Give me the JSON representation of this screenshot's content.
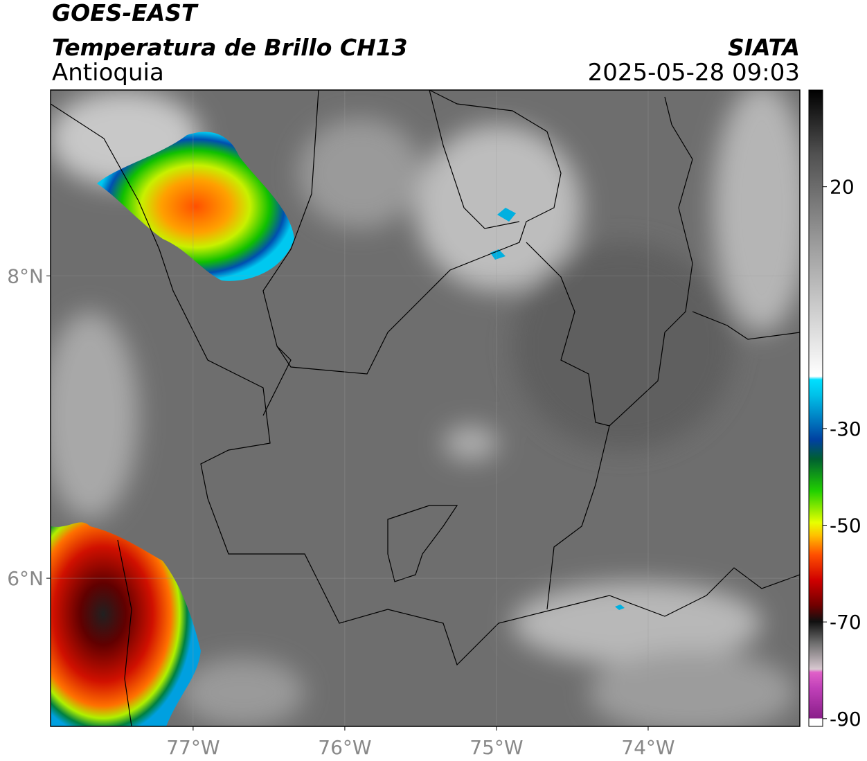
{
  "header": {
    "source": "GOES-EAST",
    "title": "Temperatura de Brillo CH13",
    "region": "Antioquia",
    "agency": "SIATA",
    "datetime": "2025-05-28 09:03"
  },
  "map": {
    "lon_range": [
      -77.94,
      -73.0
    ],
    "lat_range": [
      5.02,
      9.23
    ],
    "lon_ticks": [
      {
        "value": -77,
        "label": "77°W"
      },
      {
        "value": -76,
        "label": "76°W"
      },
      {
        "value": -75,
        "label": "75°W"
      },
      {
        "value": -74,
        "label": "74°W"
      }
    ],
    "lat_ticks": [
      {
        "value": 8,
        "label": "8°N"
      },
      {
        "value": 6,
        "label": "6°N"
      }
    ]
  },
  "colorbar": {
    "range": [
      -91.6,
      40
    ],
    "ticks": [
      20,
      -30,
      -50,
      -70,
      -90
    ]
  }
}
